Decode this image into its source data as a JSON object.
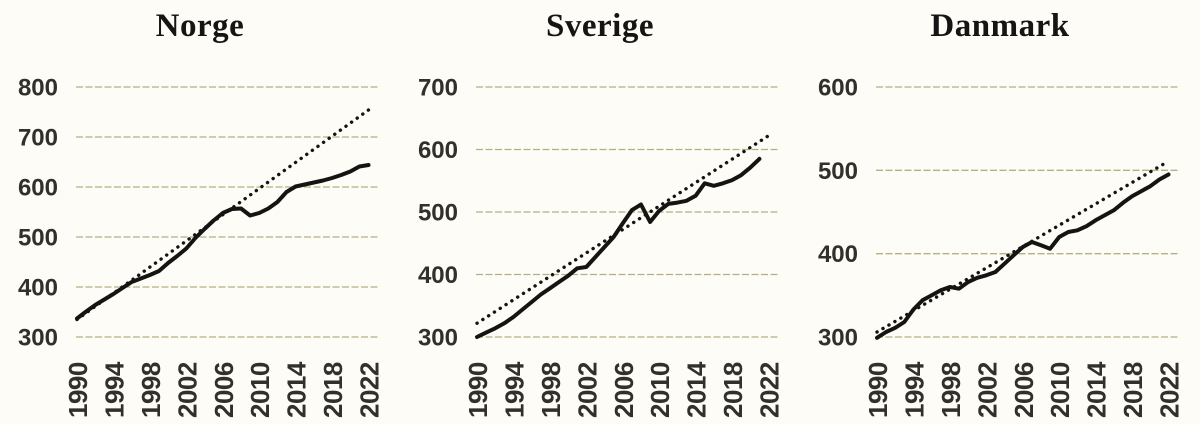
{
  "style": {
    "background": "#fdfcf7",
    "line_color": "#151413",
    "trend_color": "#151413",
    "grid_color": "#b7ae81",
    "label_color": "#33302c",
    "title_color": "#171513"
  },
  "chart_data": [
    {
      "type": "line",
      "title": "Norge",
      "xlim": [
        1990,
        2022
      ],
      "ylim": [
        300,
        800
      ],
      "y_ticks": [
        300,
        400,
        500,
        600,
        700,
        800
      ],
      "x_ticks": [
        1990,
        1994,
        1998,
        2002,
        2006,
        2010,
        2014,
        2018,
        2022
      ],
      "grid": "horizontal",
      "legend": "none",
      "series": [
        {
          "name": "solid-line",
          "style": "solid",
          "x_start": 1990,
          "x_step": 1,
          "values": [
            337,
            351,
            364,
            375,
            386,
            398,
            410,
            417,
            424,
            432,
            448,
            462,
            477,
            498,
            516,
            533,
            548,
            556,
            557,
            543,
            548,
            557,
            570,
            590,
            601,
            605,
            609,
            613,
            618,
            624,
            631,
            641,
            644
          ]
        },
        {
          "name": "dotted-trend-line",
          "style": "dotted",
          "x": [
            1990,
            2022
          ],
          "values": [
            335,
            754
          ]
        }
      ]
    },
    {
      "type": "line",
      "title": "Sverige",
      "xlim": [
        1990,
        2022
      ],
      "ylim": [
        300,
        700
      ],
      "y_ticks": [
        300,
        400,
        500,
        600,
        700
      ],
      "x_ticks": [
        1990,
        1994,
        1998,
        2002,
        2006,
        2010,
        2014,
        2018,
        2022
      ],
      "grid": "horizontal",
      "legend": "none",
      "series": [
        {
          "name": "solid-line",
          "style": "solid",
          "x_start": 1990,
          "x_step": 1,
          "values": [
            300,
            307,
            314,
            322,
            332,
            344,
            356,
            368,
            378,
            388,
            398,
            410,
            412,
            428,
            444,
            460,
            482,
            503,
            512,
            484,
            502,
            513,
            515,
            518,
            526,
            546,
            542,
            546,
            551,
            559,
            571,
            585
          ]
        },
        {
          "name": "dotted-trend-line",
          "style": "dotted",
          "x": [
            1990,
            2022
          ],
          "values": [
            322,
            622
          ]
        }
      ]
    },
    {
      "type": "line",
      "title": "Danmark",
      "xlim": [
        1990,
        2022
      ],
      "ylim": [
        300,
        600
      ],
      "y_ticks": [
        300,
        400,
        500,
        600
      ],
      "x_ticks": [
        1990,
        1994,
        1998,
        2002,
        2006,
        2010,
        2014,
        2018,
        2022
      ],
      "grid": "horizontal",
      "legend": "none",
      "series": [
        {
          "name": "solid-line",
          "style": "solid",
          "x_start": 1990,
          "x_step": 1,
          "values": [
            299,
            306,
            311,
            318,
            333,
            344,
            350,
            356,
            360,
            358,
            366,
            371,
            374,
            378,
            388,
            398,
            408,
            414,
            410,
            406,
            420,
            426,
            428,
            433,
            440,
            446,
            452,
            461,
            469,
            475,
            481,
            489,
            495
          ]
        },
        {
          "name": "dotted-trend-line",
          "style": "dotted",
          "x": [
            1990,
            2022
          ],
          "values": [
            306,
            511
          ]
        }
      ]
    }
  ]
}
